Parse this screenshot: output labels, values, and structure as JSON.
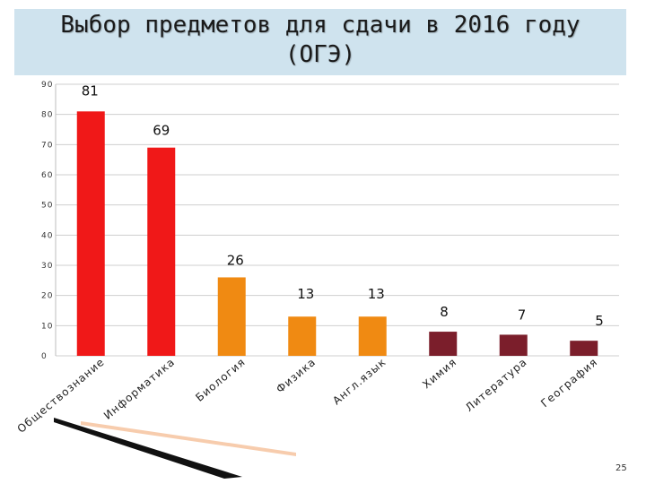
{
  "title_line1": "Выбор предметов для сдачи  в 2016 году",
  "title_line2": "(ОГЭ)",
  "page_number": "25",
  "colors": {
    "red": "#f01818",
    "orange": "#f08a12",
    "maroon": "#7b1e2b",
    "title_bg": "#cfe3ee"
  },
  "chart_data": {
    "type": "bar",
    "categories": [
      "Обществознание",
      "Информатика",
      "Биология",
      "Физика",
      "Англ.язык",
      "Химия",
      "Литература",
      "География"
    ],
    "values": [
      81,
      69,
      26,
      13,
      13,
      8,
      7,
      5
    ],
    "bar_colors": [
      "#f01818",
      "#f01818",
      "#f08a12",
      "#f08a12",
      "#f08a12",
      "#7b1e2b",
      "#7b1e2b",
      "#7b1e2b"
    ],
    "yticks": [
      0,
      10,
      20,
      30,
      40,
      50,
      60,
      70,
      80,
      90
    ],
    "ylim": [
      0,
      90
    ],
    "grid": true,
    "legend": "none"
  }
}
